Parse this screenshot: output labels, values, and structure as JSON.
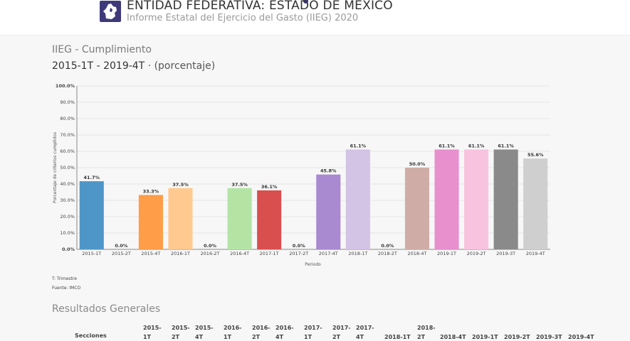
{
  "header": {
    "entity": "ENTIDAD FEDERATIVA: ESTADO DE MÉXICO",
    "report": "Informe Estatal del Ejercicio del Gasto (IIEG) 2020"
  },
  "section": {
    "title": "IIEG - Cumplimiento",
    "subtitle_range": "2015-1T - 2019-4T",
    "subtitle_unit": "· (porcentaje)"
  },
  "chart_data": {
    "type": "bar",
    "xlabel": "Periodo",
    "ylabel": "Porcentaje de criterios cumplidos",
    "ylim": [
      0,
      100
    ],
    "yticks": [
      "0.0%",
      "10.0%",
      "20.0%",
      "30.0%",
      "40.0%",
      "50.0%",
      "60.0%",
      "70.0%",
      "80.0%",
      "90.0%",
      "100.0%"
    ],
    "grid": true,
    "categories": [
      "2015-1T",
      "2015-2T",
      "2015-4T",
      "2016-1T",
      "2016-2T",
      "2016-4T",
      "2017-1T",
      "2017-2T",
      "2017-4T",
      "2018-1T",
      "2018-2T",
      "2018-4T",
      "2019-1T",
      "2019-2T",
      "2019-3T",
      "2019-4T"
    ],
    "values": [
      41.7,
      0.0,
      33.3,
      37.5,
      0.0,
      37.5,
      36.1,
      0.0,
      45.8,
      61.1,
      0.0,
      50.0,
      61.1,
      61.1,
      61.1,
      55.6
    ],
    "labels": [
      "41.7%",
      "0.0%",
      "33.3%",
      "37.5%",
      "0.0%",
      "37.5%",
      "36.1%",
      "0.0%",
      "45.8%",
      "61.1%",
      "0.0%",
      "50.0%",
      "61.1%",
      "61.1%",
      "61.1%",
      "55.6%"
    ],
    "colors": [
      "#4e96c8",
      "#aec7e8",
      "#ff9d48",
      "#ffc98f",
      "#7fc77a",
      "#b4e3a6",
      "#d94f4f",
      "#ff9f9b",
      "#a989cf",
      "#d3c3e5",
      "#9b7468",
      "#cfada6",
      "#e88fce",
      "#f8c3de",
      "#8a8a8a",
      "#cfcfcf"
    ]
  },
  "notes": {
    "trimestre": "T: Trimestre",
    "fuente": "Fuente: IMCO"
  },
  "results": {
    "title": "Resultados Generales",
    "col_secciones": "Secciones",
    "columns": [
      [
        "2015-",
        "1T"
      ],
      [
        "2015-",
        "2T"
      ],
      [
        "2015-",
        "4T"
      ],
      [
        "2016-",
        "1T"
      ],
      [
        "2016-",
        "2T"
      ],
      [
        "2016-",
        "4T"
      ],
      [
        "2017-",
        "1T"
      ],
      [
        "2017-",
        "2T"
      ],
      [
        "2017-",
        "4T"
      ],
      [
        "2018-1T"
      ],
      [
        "2018-",
        "2T"
      ],
      [
        "2018-4T"
      ],
      [
        "2019-1T"
      ],
      [
        "2019-2T"
      ],
      [
        "2019-3T"
      ],
      [
        "2019-4T"
      ]
    ]
  }
}
